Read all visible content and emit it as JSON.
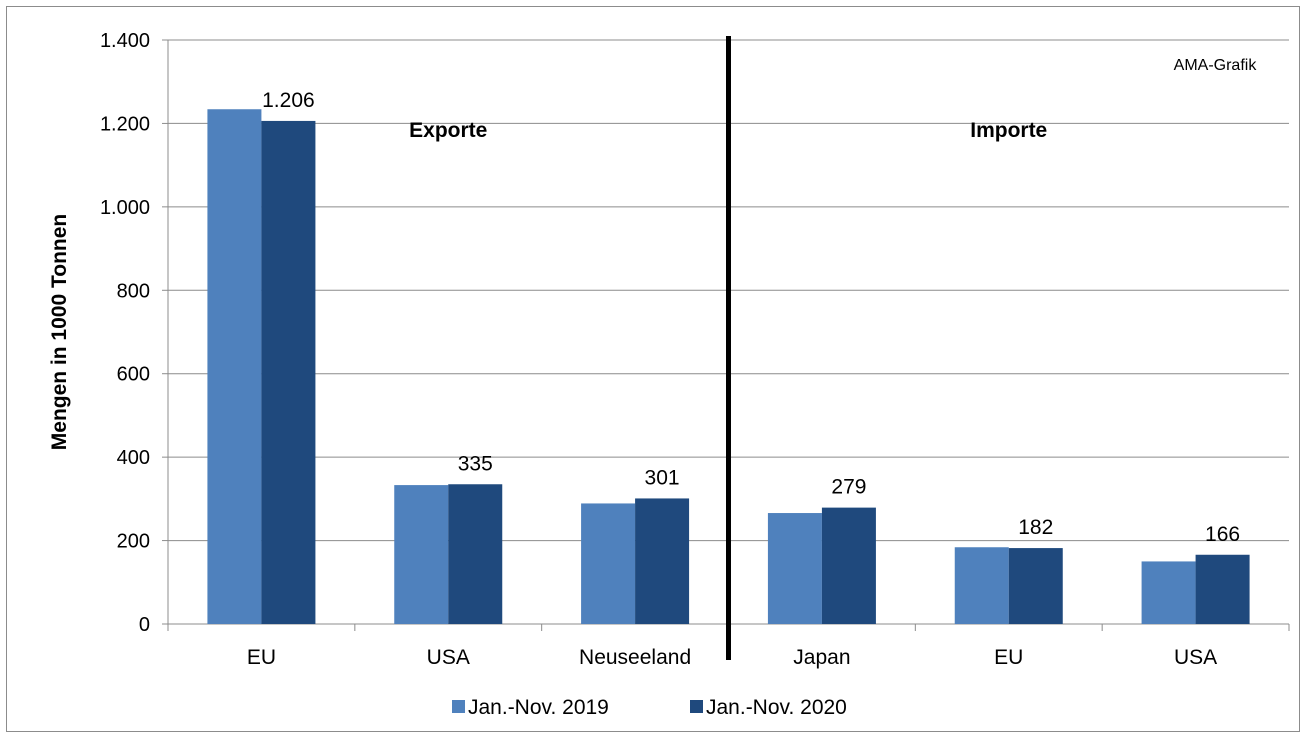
{
  "chart_data": {
    "type": "bar",
    "categories": [
      "EU",
      "USA",
      "Neuseeland",
      "Japan",
      "EU",
      "USA"
    ],
    "series": [
      {
        "name": "Jan.-Nov. 2019",
        "values": [
          1234,
          333,
          289,
          266,
          184,
          150
        ],
        "color": "#4f81bd"
      },
      {
        "name": "Jan.-Nov. 2020",
        "values": [
          1206,
          335,
          301,
          279,
          182,
          166
        ],
        "color": "#1f497d"
      }
    ],
    "data_labels": [
      "1.206",
      "335",
      "301",
      "279",
      "182",
      "166"
    ],
    "ylabel": "Mengen in 1000 Tonnen",
    "ylim": [
      0,
      1400
    ],
    "yticks": [
      0,
      200,
      400,
      600,
      800,
      1000,
      1200,
      1400
    ],
    "ytick_labels": [
      "0",
      "200",
      "400",
      "600",
      "800",
      "1.000",
      "1.200",
      "1.400"
    ],
    "grid": true,
    "legend_position": "bottom",
    "sections": [
      "Exporte",
      "Importe"
    ],
    "source_note": "AMA-Grafik"
  }
}
